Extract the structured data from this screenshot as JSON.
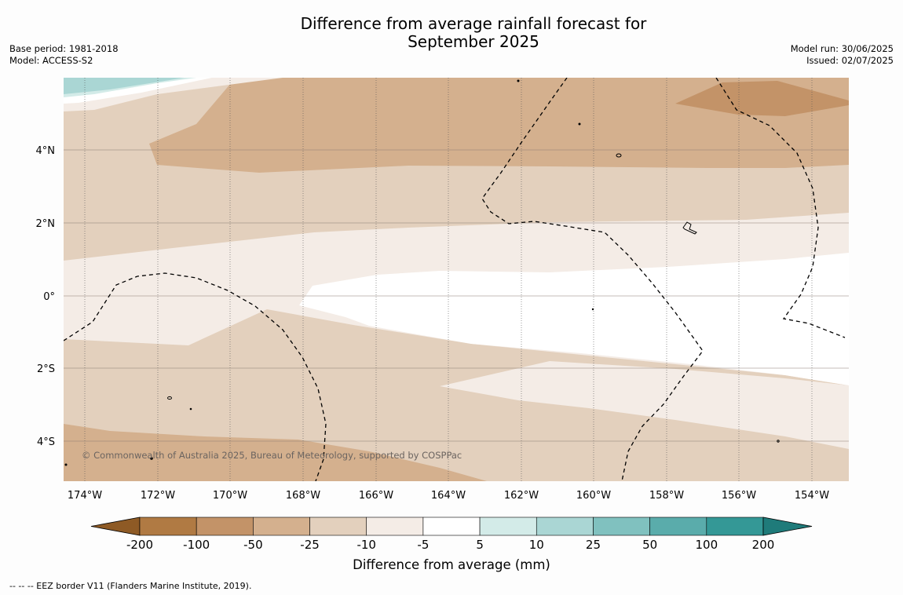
{
  "title": {
    "line1": "Difference from average rainfall forecast for",
    "line2": "September 2025"
  },
  "meta_left": {
    "base_period": "Base period: 1981-2018",
    "model": "Model: ACCESS-S2"
  },
  "meta_right": {
    "model_run": "Model run: 30/06/2025",
    "issued": "Issued: 02/07/2025"
  },
  "map": {
    "lat_labels": [
      "4°N",
      "2°N",
      "0°",
      "2°S",
      "4°S"
    ],
    "lon_labels": [
      "174°W",
      "172°W",
      "170°W",
      "168°W",
      "166°W",
      "164°W",
      "162°W",
      "160°W",
      "158°W",
      "156°W",
      "154°W"
    ],
    "copyright": "© Commonwealth of Australia 2025, Bureau of Meteorology, supported by COSPPac"
  },
  "colorbar": {
    "title": "Difference from average (mm)",
    "tick_labels": [
      "-200",
      "-100",
      "-50",
      "-25",
      "-10",
      "-5",
      "5",
      "10",
      "25",
      "50",
      "100",
      "200"
    ],
    "colors": [
      "#8e5a25",
      "#b07a43",
      "#c39368",
      "#d4b08e",
      "#e3d0bd",
      "#f4ece6",
      "#ffffff",
      "#d3ebe8",
      "#aad6d4",
      "#80c1bf",
      "#5aacab",
      "#349896",
      "#1f7b7a"
    ]
  },
  "footer": "--  --  -- EEZ border V11 (Flanders Marine Institute, 2019)."
}
